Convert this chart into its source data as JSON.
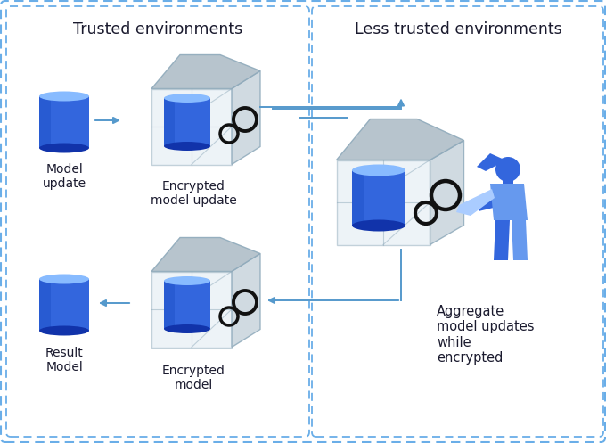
{
  "bg_color": "#ffffff",
  "border_color": "#6aaee8",
  "left_box_title": "Trusted environments",
  "right_box_title": "Less trusted environments",
  "cyl_body": "#3366dd",
  "cyl_top": "#88bbff",
  "cyl_dark": "#1133aa",
  "cyl_shade": "#2255cc",
  "box_front": "#dde8f0",
  "box_top": "#b0bec8",
  "box_right": "#c8d4dc",
  "box_edge": "#8faabb",
  "lock_color": "#111111",
  "arrow_color": "#5599cc",
  "text_color": "#1a1a2e",
  "person_dark": "#3366dd",
  "person_mid": "#6699ee",
  "person_light": "#aaccff",
  "labels": {
    "model_update": "Model\nupdate",
    "encrypted_model_update": "Encrypted\nmodel update",
    "result_model": "Result\nModel",
    "encrypted_model": "Encrypted\nmodel",
    "aggregate": "Aggregate\nmodel updates\nwhile\nencrypted"
  }
}
